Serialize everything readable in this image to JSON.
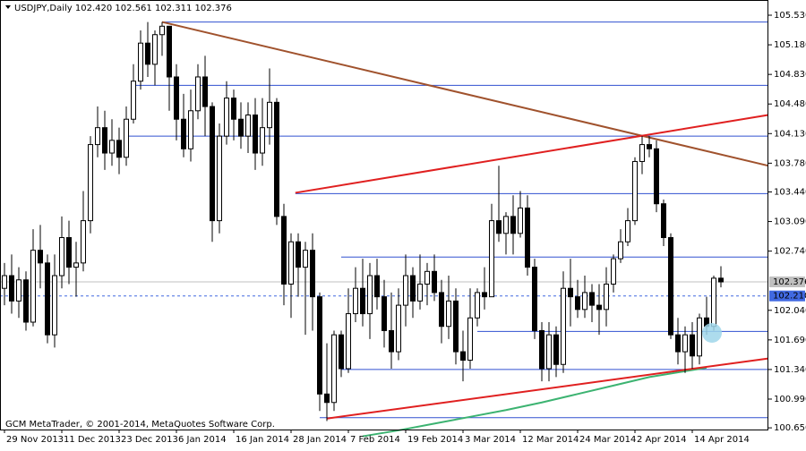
{
  "chart_data": {
    "type": "candlestick",
    "header": "USDJPY,Daily  102.420 102.561 102.311 102.376",
    "footer": "GCM MetaTrader, © 2001-2014, MetaQuotes Software Corp.",
    "xlim": [
      -0.625,
      106.625
    ],
    "ylim": [
      100.63,
      105.71
    ],
    "bull_color": "#ffffff",
    "bear_color": "#000000",
    "open": [
      102.3,
      102.45,
      102.15,
      102.4,
      101.9,
      102.75,
      102.6,
      101.75,
      102.45,
      102.9,
      102.55,
      102.6,
      103.1,
      104.0,
      104.2,
      103.9,
      104.05,
      103.85,
      104.3,
      104.75,
      105.2,
      104.95,
      105.3,
      105.4,
      104.8,
      104.3,
      103.95,
      104.4,
      104.8,
      104.45,
      103.1,
      104.1,
      104.55,
      104.3,
      104.1,
      104.35,
      103.9,
      104.2,
      104.5,
      103.15,
      102.35,
      102.85,
      102.55,
      102.75,
      102.2,
      101.05,
      100.95,
      101.75,
      101.35,
      102.0,
      102.3,
      102.0,
      102.45,
      102.2,
      101.8,
      101.55,
      102.1,
      102.45,
      102.15,
      102.35,
      102.5,
      102.25,
      101.85,
      102.15,
      101.55,
      101.45,
      101.95,
      102.25,
      102.2,
      103.1,
      102.95,
      103.15,
      102.95,
      103.25,
      102.55,
      101.8,
      101.35,
      101.75,
      101.4,
      102.3,
      102.2,
      102.05,
      102.25,
      102.1,
      102.05,
      102.35,
      102.65,
      102.85,
      103.1,
      103.8,
      104.0,
      103.95,
      103.3,
      102.9,
      101.75,
      101.55,
      101.75,
      101.5,
      101.95,
      101.85,
      102.42
    ],
    "high": [
      102.6,
      102.7,
      102.55,
      102.5,
      103.0,
      103.05,
      102.7,
      102.7,
      103.15,
      103.1,
      102.85,
      103.45,
      104.1,
      104.45,
      104.4,
      104.3,
      104.2,
      104.45,
      104.95,
      105.35,
      105.45,
      105.35,
      105.45,
      105.4,
      104.95,
      104.6,
      104.65,
      104.95,
      105.05,
      104.5,
      104.25,
      104.75,
      104.65,
      104.5,
      104.5,
      104.55,
      104.55,
      104.9,
      104.55,
      103.3,
      102.95,
      102.95,
      102.85,
      102.95,
      102.25,
      101.65,
      101.8,
      101.8,
      102.3,
      102.55,
      102.65,
      102.6,
      102.65,
      102.4,
      102.25,
      102.3,
      102.7,
      102.55,
      102.7,
      102.6,
      102.7,
      102.4,
      102.45,
      102.3,
      101.8,
      102.3,
      102.3,
      102.55,
      103.3,
      103.75,
      103.2,
      103.4,
      103.45,
      103.4,
      102.65,
      101.9,
      101.9,
      101.85,
      102.5,
      102.65,
      102.4,
      102.45,
      102.35,
      102.35,
      102.55,
      102.7,
      103.0,
      103.25,
      103.85,
      104.1,
      104.1,
      104.05,
      103.35,
      102.95,
      101.95,
      101.85,
      101.9,
      102.0,
      102.2,
      102.45,
      102.561
    ],
    "low": [
      102.1,
      102.0,
      101.95,
      101.8,
      101.85,
      102.3,
      101.65,
      101.6,
      102.3,
      102.35,
      102.2,
      102.5,
      102.95,
      103.85,
      103.7,
      103.75,
      103.65,
      103.75,
      104.25,
      104.65,
      104.8,
      104.7,
      105.05,
      104.4,
      104.05,
      103.85,
      103.8,
      104.3,
      104.1,
      102.85,
      102.95,
      104.0,
      104.05,
      103.95,
      103.9,
      103.7,
      103.75,
      104.0,
      103.05,
      102.1,
      101.95,
      102.2,
      101.75,
      101.8,
      100.85,
      100.73,
      100.85,
      101.25,
      101.3,
      101.9,
      101.85,
      101.7,
      102.05,
      101.6,
      101.35,
      101.45,
      101.85,
      101.95,
      102.05,
      102.1,
      102.15,
      101.65,
      101.7,
      101.4,
      101.2,
      101.35,
      101.85,
      102.05,
      102.2,
      102.85,
      102.7,
      102.7,
      102.9,
      102.45,
      101.7,
      101.2,
      101.2,
      101.25,
      101.3,
      101.85,
      101.95,
      101.95,
      101.9,
      101.75,
      101.85,
      102.25,
      102.6,
      102.8,
      103.05,
      103.65,
      103.85,
      103.2,
      102.8,
      101.7,
      101.4,
      101.3,
      101.35,
      101.4,
      101.75,
      101.8,
      102.311
    ],
    "close": [
      102.45,
      102.15,
      102.4,
      101.9,
      102.75,
      102.6,
      101.75,
      102.45,
      102.9,
      102.55,
      102.6,
      103.1,
      104.0,
      104.2,
      103.9,
      104.05,
      103.85,
      104.3,
      104.75,
      105.2,
      104.95,
      105.3,
      105.4,
      104.8,
      104.3,
      103.95,
      104.4,
      104.8,
      104.45,
      103.1,
      104.1,
      104.55,
      104.3,
      104.1,
      104.35,
      103.9,
      104.2,
      104.5,
      103.15,
      102.35,
      102.85,
      102.55,
      102.75,
      102.2,
      101.05,
      100.95,
      101.75,
      101.35,
      102.0,
      102.3,
      102.0,
      102.45,
      102.2,
      101.8,
      101.55,
      102.1,
      102.45,
      102.15,
      102.35,
      102.5,
      102.25,
      101.85,
      102.15,
      101.55,
      101.45,
      101.95,
      102.25,
      102.2,
      103.1,
      102.95,
      103.15,
      102.95,
      103.25,
      102.55,
      101.8,
      101.35,
      101.75,
      101.4,
      102.3,
      102.2,
      102.05,
      102.25,
      102.1,
      102.05,
      102.35,
      102.65,
      102.85,
      103.1,
      103.8,
      104.0,
      103.95,
      103.3,
      102.9,
      101.75,
      101.55,
      101.75,
      101.5,
      101.95,
      101.85,
      102.42,
      102.376
    ],
    "yticks": [
      {
        "value": 105.53,
        "label": "105.530"
      },
      {
        "value": 105.18,
        "label": "105.180"
      },
      {
        "value": 104.83,
        "label": "104.830"
      },
      {
        "value": 104.48,
        "label": "104.480"
      },
      {
        "value": 104.13,
        "label": "104.130"
      },
      {
        "value": 103.78,
        "label": "103.780"
      },
      {
        "value": 103.44,
        "label": "103.440"
      },
      {
        "value": 103.09,
        "label": "103.090"
      },
      {
        "value": 102.74,
        "label": "102.740"
      },
      {
        "value": 102.04,
        "label": "102.040"
      },
      {
        "value": 101.69,
        "label": "101.690"
      },
      {
        "value": 101.34,
        "label": "101.340"
      },
      {
        "value": 100.99,
        "label": "100.990"
      },
      {
        "value": 100.65,
        "label": "100.650"
      }
    ],
    "xticks": [
      {
        "value": 0,
        "label": "29 Nov 2013"
      },
      {
        "value": 8,
        "label": "11 Dec 2013"
      },
      {
        "value": 16,
        "label": "23 Dec 2013"
      },
      {
        "value": 24,
        "label": "6 Jan 2014"
      },
      {
        "value": 32,
        "label": "16 Jan 2014"
      },
      {
        "value": 40,
        "label": "28 Jan 2014"
      },
      {
        "value": 48,
        "label": "7 Feb 2014"
      },
      {
        "value": 56,
        "label": "19 Feb 2014"
      },
      {
        "value": 64,
        "label": "3 Mar 2014"
      },
      {
        "value": 72,
        "label": "12 Mar 2014"
      },
      {
        "value": 80,
        "label": "24 Mar 2014"
      },
      {
        "value": 88,
        "label": "2 Apr 2014"
      },
      {
        "value": 96,
        "label": "14 Apr 2014"
      }
    ],
    "current_price": {
      "value": 102.376,
      "label": "102.376",
      "color": "#c0c0c0"
    },
    "alert_price": {
      "value": 102.21,
      "label": "102.210",
      "color": "#4169e1"
    },
    "levels_color": "#3050d0",
    "levels": [
      {
        "start": 22,
        "price": 105.45
      },
      {
        "start": 18,
        "price": 104.7
      },
      {
        "start": 17,
        "price": 104.1
      },
      {
        "start": 40.6,
        "price": 103.42
      },
      {
        "start": 47,
        "price": 102.67
      },
      {
        "start": 66,
        "price": 101.79
      },
      {
        "start": 47,
        "price": 101.34
      },
      {
        "start": 44,
        "price": 100.77
      }
    ],
    "trendlines": [
      {
        "color": "#a0522d",
        "x": [
          22,
          106.6
        ],
        "y": [
          105.45,
          103.75
        ]
      },
      {
        "color": "#e02020",
        "x": [
          40.6,
          106.6
        ],
        "y": [
          103.43,
          104.35
        ]
      },
      {
        "color": "#e02020",
        "x": [
          45,
          106.6
        ],
        "y": [
          100.76,
          101.47
        ]
      }
    ],
    "moving_average": {
      "color": "#3cb371",
      "x": [
        50,
        55,
        60,
        65,
        70,
        75,
        80,
        85,
        90,
        95,
        98
      ],
      "values": [
        100.55,
        100.62,
        100.7,
        100.78,
        100.86,
        100.95,
        101.05,
        101.15,
        101.25,
        101.32,
        101.36
      ]
    }
  }
}
